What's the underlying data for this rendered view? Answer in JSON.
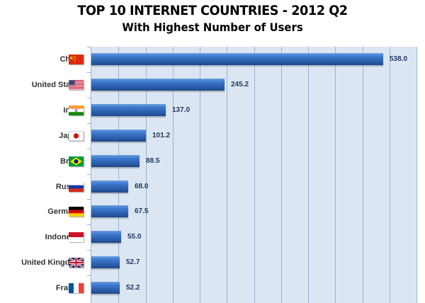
{
  "header": {
    "title": "TOP 10 INTERNET COUNTRIES  - 2012 Q2",
    "subtitle": "With Highest Number of Users"
  },
  "colors": {
    "bar": "#2e63b3",
    "plot_background": "#dce6f2",
    "gridline": "#95b3d7",
    "value_label": "#1f3864"
  },
  "chart_data": {
    "type": "bar",
    "orientation": "horizontal",
    "title": "TOP 10 INTERNET COUNTRIES - 2012 Q2",
    "subtitle": "With Highest Number of Users",
    "xlabel": "",
    "ylabel": "",
    "xlim": [
      0,
      600
    ],
    "grid": true,
    "gridline_interval": 50,
    "legend": "none",
    "categories": [
      "China",
      "United States",
      "India",
      "Japan",
      "Brazil",
      "Russia",
      "Germany",
      "Indonesia",
      "United Kingdom",
      "France"
    ],
    "values": [
      538.0,
      245.2,
      137.0,
      101.2,
      88.5,
      68.0,
      67.5,
      55.0,
      52.7,
      52.2
    ],
    "value_labels": [
      "538.0",
      "245.2",
      "137.0",
      "101.2",
      "88.5",
      "68.0",
      "67.5",
      "55.0",
      "52.7",
      "52.2"
    ],
    "flags": [
      "china-flag",
      "us-flag",
      "india-flag",
      "japan-flag",
      "brazil-flag",
      "russia-flag",
      "germany-flag",
      "indonesia-flag",
      "uk-flag",
      "france-flag"
    ]
  }
}
